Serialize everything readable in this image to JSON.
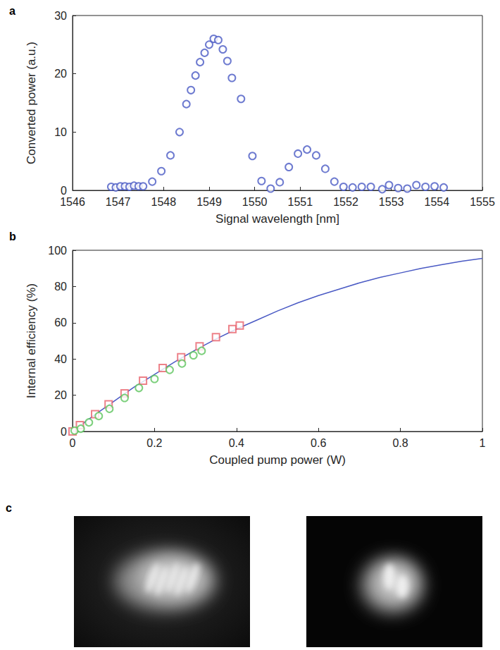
{
  "chart_data": [
    {
      "type": "scatter",
      "title": "a",
      "x_label": "Signal wavelength [nm]",
      "y_label": "Converted power (a.u.)",
      "xlim": [
        1546,
        1555
      ],
      "xticks": [
        1546,
        1547,
        1548,
        1549,
        1550,
        1551,
        1552,
        1553,
        1554,
        1555
      ],
      "ylim": [
        0,
        30
      ],
      "yticks": [
        0,
        10,
        20,
        30
      ],
      "grid": false,
      "series": [
        {
          "type": "scatter",
          "color": "#4a5ac4",
          "marker": "circle",
          "x": [
            1546.85,
            1546.95,
            1547.05,
            1547.15,
            1547.25,
            1547.35,
            1547.45,
            1547.55,
            1547.75,
            1547.95,
            1548.15,
            1548.35,
            1548.5,
            1548.6,
            1548.7,
            1548.8,
            1548.9,
            1549.0,
            1549.1,
            1549.2,
            1549.3,
            1549.4,
            1549.5,
            1549.7,
            1549.95,
            1550.15,
            1550.35,
            1550.55,
            1550.75,
            1550.95,
            1551.15,
            1551.35,
            1551.55,
            1551.75,
            1551.95,
            1552.15,
            1552.35,
            1552.55,
            1552.8,
            1552.95,
            1553.15,
            1553.35,
            1553.55,
            1553.75,
            1553.95,
            1554.15
          ],
          "values": [
            0.6,
            0.5,
            0.7,
            0.7,
            0.6,
            0.8,
            0.7,
            0.7,
            1.5,
            3.3,
            6,
            10,
            14.8,
            17.2,
            19.7,
            22,
            23.6,
            25,
            26,
            25.8,
            24.2,
            22.2,
            19.3,
            15.7,
            5.9,
            1.6,
            0.3,
            1.4,
            4,
            6.3,
            7,
            6,
            3.7,
            1.5,
            0.6,
            0.5,
            0.6,
            0.6,
            0.2,
            0.9,
            0.4,
            0.3,
            0.9,
            0.6,
            0.7,
            0.5
          ]
        }
      ]
    },
    {
      "type": "scatter",
      "title": "b",
      "x_label": "Coupled pump power (W)",
      "y_label": "Internal efficiency (%)",
      "xlim": [
        0,
        1
      ],
      "xticks": [
        0,
        0.2,
        0.4,
        0.6,
        0.8,
        1
      ],
      "ylim": [
        0,
        100
      ],
      "yticks": [
        0,
        20,
        40,
        60,
        80,
        100
      ],
      "grid": false,
      "series": [
        {
          "type": "line",
          "color": "#4a5ac4",
          "line_style": "solid",
          "x": [
            0,
            0.05,
            0.1,
            0.15,
            0.2,
            0.25,
            0.3,
            0.35,
            0.4,
            0.45,
            0.5,
            0.55,
            0.6,
            0.65,
            0.7,
            0.75,
            0.8,
            0.85,
            0.9,
            0.95,
            1
          ],
          "values": [
            0,
            8.5,
            16.5,
            24.5,
            31.5,
            38.5,
            45,
            51,
            56.5,
            61.5,
            66.5,
            71,
            75,
            78.5,
            82,
            85,
            87.5,
            90,
            92,
            94,
            95.5
          ]
        },
        {
          "type": "scatter",
          "color": "#e8626b",
          "marker": "square",
          "x": [
            0,
            0.018,
            0.055,
            0.088,
            0.127,
            0.172,
            0.22,
            0.265,
            0.31,
            0.35,
            0.39,
            0.408
          ],
          "values": [
            0,
            3.5,
            9.5,
            15,
            21,
            28,
            35,
            41,
            47,
            52,
            56.5,
            58.5
          ]
        },
        {
          "type": "scatter",
          "color": "#5cc45c",
          "marker": "circle",
          "x": [
            0.005,
            0.02,
            0.04,
            0.064,
            0.09,
            0.127,
            0.162,
            0.2,
            0.237,
            0.267,
            0.295,
            0.315
          ],
          "values": [
            0.5,
            1.5,
            5,
            8.5,
            12.5,
            18.5,
            24,
            29,
            34,
            37.5,
            42,
            44.5
          ]
        }
      ]
    }
  ],
  "image_panel": {
    "title": "c",
    "image_count": 2
  }
}
